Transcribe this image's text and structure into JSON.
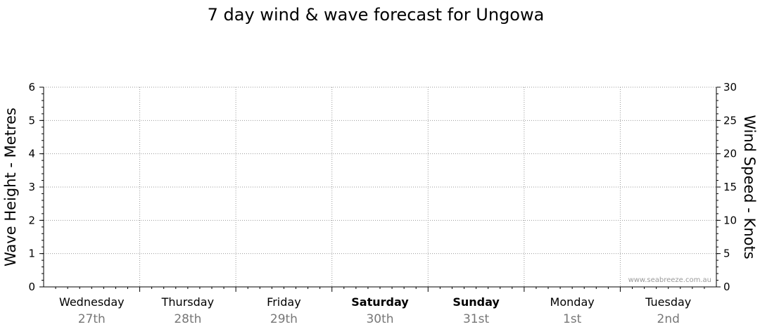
{
  "chart_data": {
    "type": "line",
    "title": "7 day wind & wave forecast for Ungowa",
    "ylabel": "Wave Height - Metres",
    "y2label": "Wind Speed - Knots",
    "ylim": [
      0,
      6
    ],
    "y2lim": [
      0,
      30
    ],
    "yticks": [
      "0",
      "1",
      "2",
      "3",
      "4",
      "5",
      "6"
    ],
    "y2ticks": [
      "0",
      "5",
      "10",
      "15",
      "20",
      "25",
      "30"
    ],
    "grid": true,
    "categories": [
      {
        "day": "Wednesday",
        "date": "27th",
        "bold": false
      },
      {
        "day": "Thursday",
        "date": "28th",
        "bold": false
      },
      {
        "day": "Friday",
        "date": "29th",
        "bold": false
      },
      {
        "day": "Saturday",
        "date": "30th",
        "bold": true
      },
      {
        "day": "Sunday",
        "date": "31st",
        "bold": true
      },
      {
        "day": "Monday",
        "date": "1st",
        "bold": false
      },
      {
        "day": "Tuesday",
        "date": "2nd",
        "bold": false
      }
    ],
    "series": [],
    "watermark": "www.seabreeze.com.au"
  }
}
